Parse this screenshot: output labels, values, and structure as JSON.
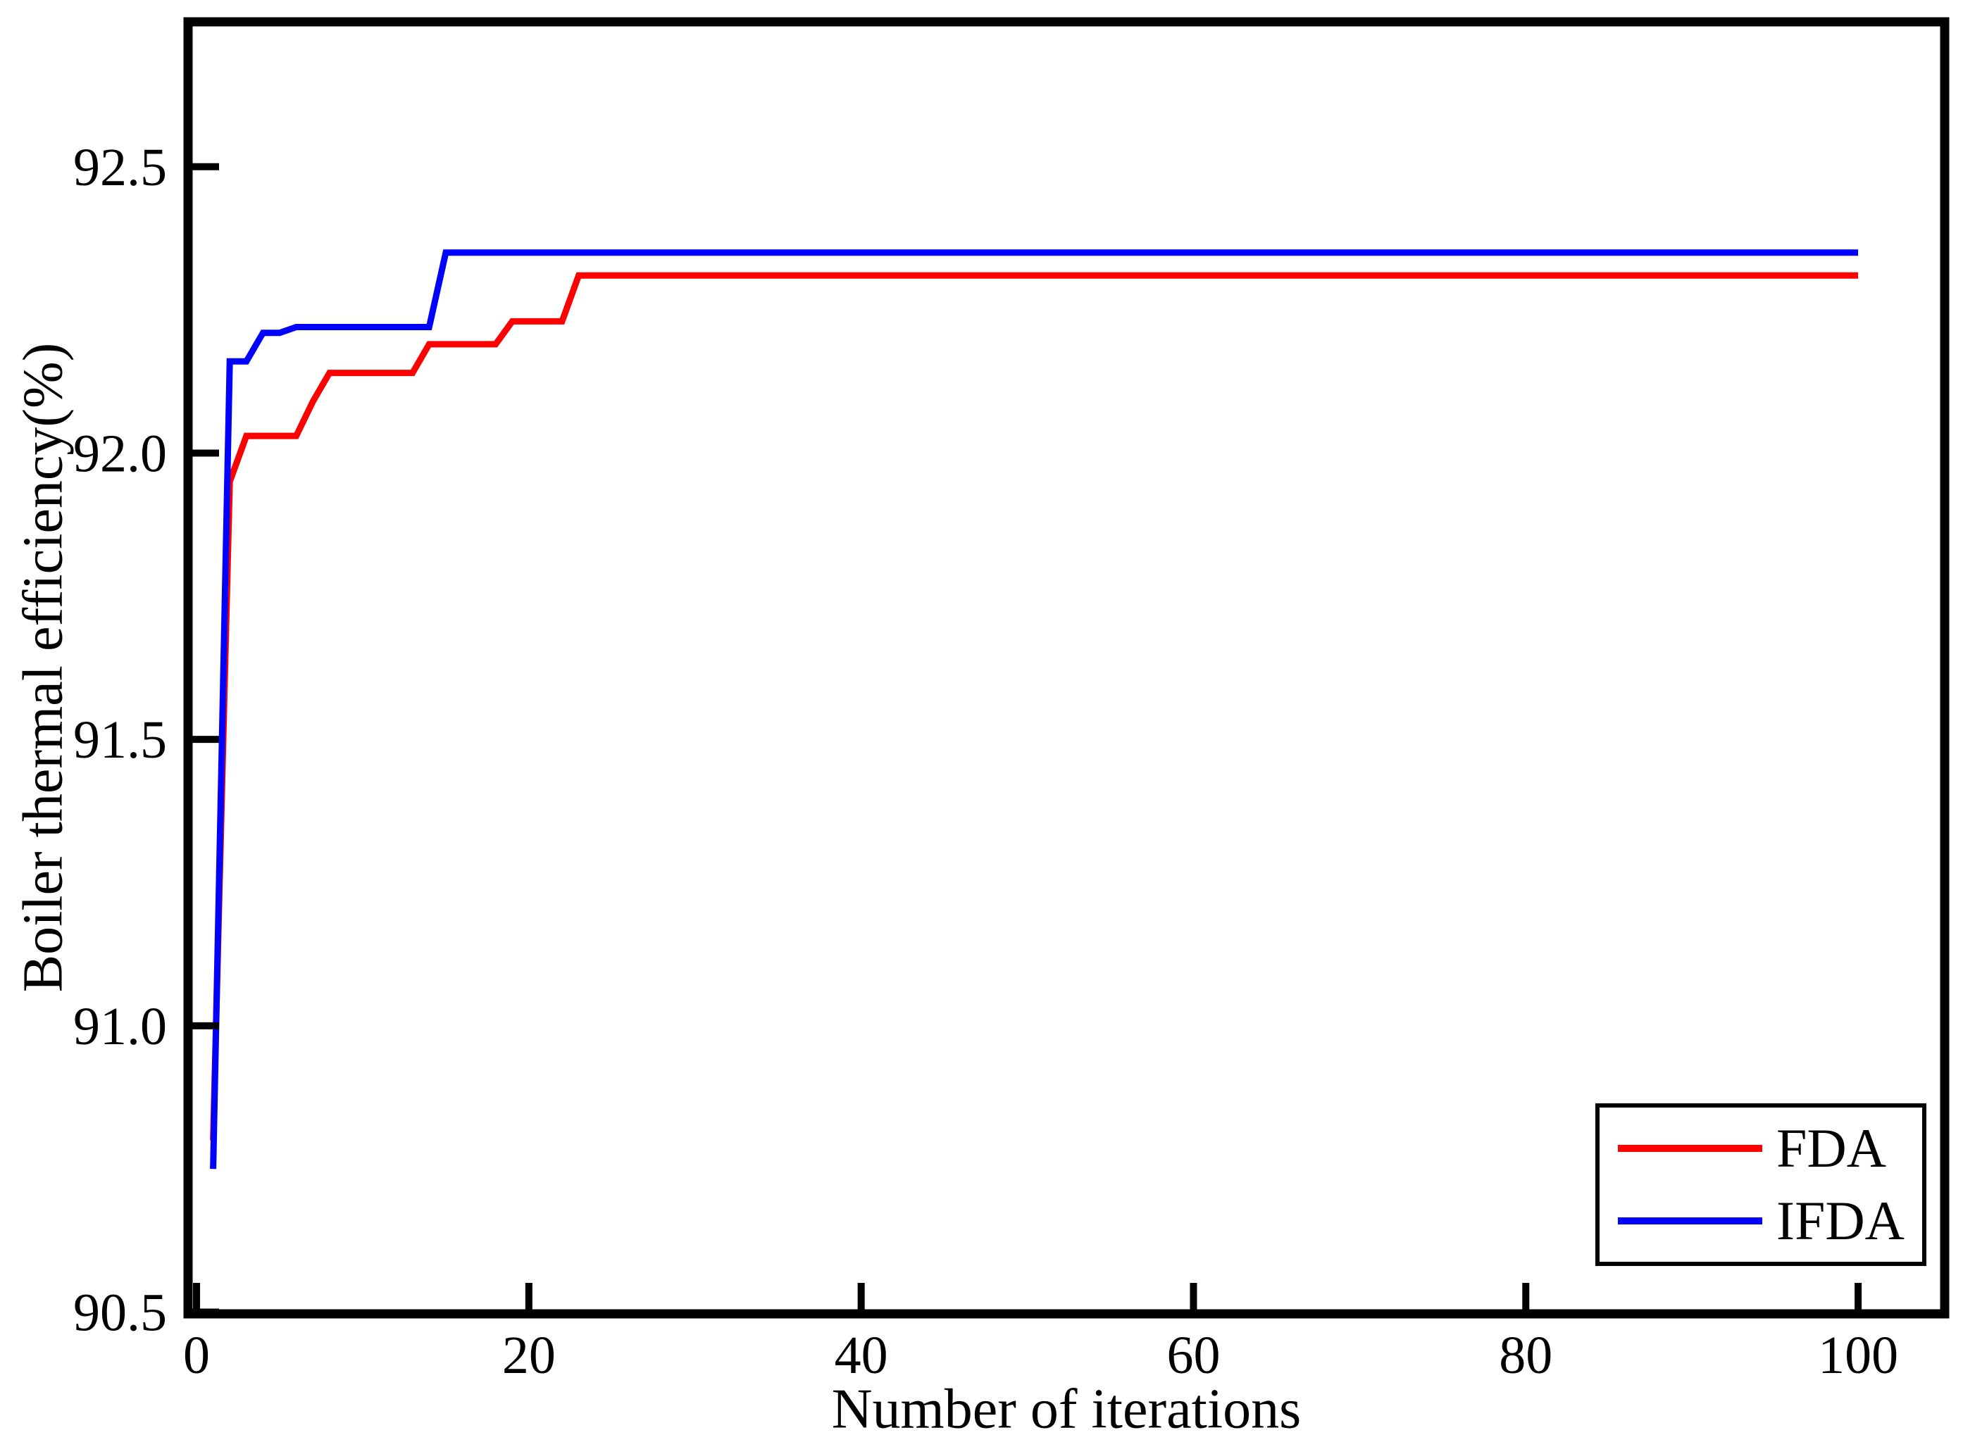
{
  "figure": {
    "background": "#ffffff",
    "frame_color": "#000000"
  },
  "chart_data": {
    "type": "line",
    "title": "",
    "xlabel": "Number of iterations",
    "ylabel": "Boiler thermal efficiency(%)",
    "xlim": [
      -0.51,
      105.21
    ],
    "ylim": [
      90.497,
      92.753
    ],
    "x_ticks": [
      0,
      20,
      40,
      60,
      80,
      100
    ],
    "x_tick_labels": [
      "0",
      "20",
      "40",
      "60",
      "80",
      "100"
    ],
    "y_ticks": [
      90.5,
      91.0,
      91.5,
      92.0,
      92.5
    ],
    "y_tick_labels": [
      "90.5",
      "91.0",
      "91.5",
      "92.0",
      "92.5"
    ],
    "grid": false,
    "legend_position": "lower right",
    "series": [
      {
        "name": "FDA",
        "color": "#ff0000",
        "points": [
          [
            1,
            90.8
          ],
          [
            2,
            91.95
          ],
          [
            3,
            92.03
          ],
          [
            6,
            92.03
          ],
          [
            7,
            92.09
          ],
          [
            8,
            92.14
          ],
          [
            13,
            92.14
          ],
          [
            14,
            92.19
          ],
          [
            18,
            92.19
          ],
          [
            19,
            92.23
          ],
          [
            22,
            92.23
          ],
          [
            23,
            92.31
          ],
          [
            100,
            92.31
          ]
        ]
      },
      {
        "name": "IFDA",
        "color": "#0000ff",
        "points": [
          [
            1,
            90.75
          ],
          [
            2,
            92.16
          ],
          [
            3,
            92.16
          ],
          [
            4,
            92.21
          ],
          [
            5,
            92.21
          ],
          [
            6,
            92.22
          ],
          [
            14,
            92.22
          ],
          [
            15,
            92.35
          ],
          [
            100,
            92.35
          ]
        ]
      }
    ]
  },
  "legend": {
    "items": [
      {
        "label": "FDA",
        "color": "#ff0000"
      },
      {
        "label": "IFDA",
        "color": "#0000ff"
      }
    ]
  }
}
